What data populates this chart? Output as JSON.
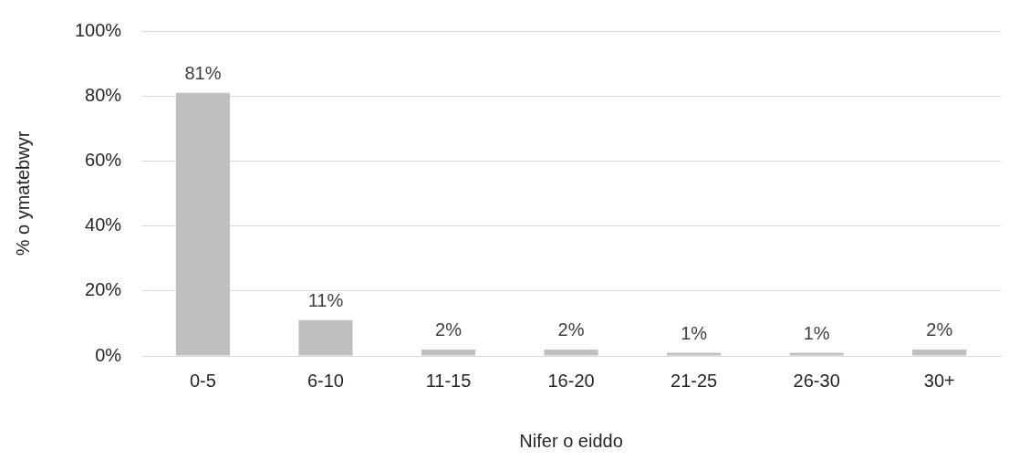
{
  "chart_data": {
    "type": "bar",
    "xlabel": "Nifer o eiddo",
    "ylabel": "% o ymatebwyr",
    "categories": [
      "0-5",
      "6-10",
      "11-15",
      "16-20",
      "21-25",
      "26-30",
      "30+"
    ],
    "values": [
      81,
      11,
      2,
      2,
      1,
      1,
      2
    ],
    "value_labels": [
      "81%",
      "11%",
      "2%",
      "2%",
      "1%",
      "1%",
      "2%"
    ],
    "color": "#bfbfbf",
    "ylim": [
      0,
      100
    ],
    "yticks": [
      {
        "value": 0,
        "label": "0%"
      },
      {
        "value": 20,
        "label": "20%"
      },
      {
        "value": 40,
        "label": "40%"
      },
      {
        "value": 60,
        "label": "60%"
      },
      {
        "value": 80,
        "label": "80%"
      },
      {
        "value": 100,
        "label": "100%"
      }
    ],
    "grid": "y",
    "legend": false
  }
}
